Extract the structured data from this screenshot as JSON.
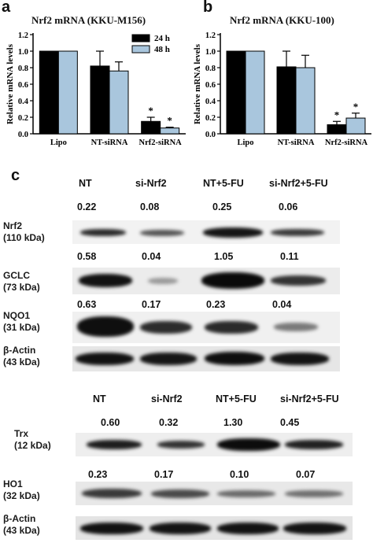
{
  "panels": {
    "a": {
      "letter": "a",
      "title": "Nrf2 mRNA  (KKU-M156)"
    },
    "b": {
      "letter": "b",
      "title": "Nrf2 mRNA  (KKU-100)"
    },
    "c": {
      "letter": "c"
    }
  },
  "chart_data": [
    {
      "type": "bar",
      "title": "Nrf2 mRNA  (KKU-M156)",
      "ylabel": "Relative mRNA levels",
      "ylim": [
        0,
        1.2
      ],
      "yticks": [
        "0.0",
        "0.2",
        "0.4",
        "0.6",
        "0.8",
        "1.0",
        "1.2"
      ],
      "categories": [
        "Lipo",
        "NT-siRNA",
        "Nrf2-siRNA"
      ],
      "series": [
        {
          "name": "24 h",
          "color": "#000000",
          "values": [
            1.0,
            0.82,
            0.15
          ],
          "errors": [
            0.0,
            0.18,
            0.05
          ]
        },
        {
          "name": "48 h",
          "color": "#a9c6dd",
          "values": [
            1.0,
            0.76,
            0.07
          ],
          "errors": [
            0.0,
            0.11,
            0.01
          ]
        }
      ],
      "significance": [
        {
          "category": "Nrf2-siRNA",
          "series": "24 h",
          "mark": "*"
        },
        {
          "category": "Nrf2-siRNA",
          "series": "48 h",
          "mark": "*"
        }
      ],
      "legend": "top-right"
    },
    {
      "type": "bar",
      "title": "Nrf2 mRNA  (KKU-100)",
      "ylabel": "Relative mRNA levels",
      "ylim": [
        0,
        1.2
      ],
      "yticks": [
        "0.0",
        "0.2",
        "0.4",
        "0.6",
        "0.8",
        "1.0",
        "1.2"
      ],
      "categories": [
        "Lipo",
        "NT-siRNA",
        "Nrf2-siRNA"
      ],
      "series": [
        {
          "name": "24 h",
          "color": "#000000",
          "values": [
            1.0,
            0.81,
            0.11
          ],
          "errors": [
            0.0,
            0.19,
            0.04
          ]
        },
        {
          "name": "48 h",
          "color": "#a9c6dd",
          "values": [
            1.0,
            0.8,
            0.19
          ],
          "errors": [
            0.0,
            0.15,
            0.06
          ]
        }
      ],
      "significance": [
        {
          "category": "Nrf2-siRNA",
          "series": "24 h",
          "mark": "*"
        },
        {
          "category": "Nrf2-siRNA",
          "series": "48 h",
          "mark": "*"
        }
      ],
      "legend": "none"
    }
  ],
  "blot1": {
    "lanes": [
      "NT",
      "si-Nrf2",
      "NT+5-FU",
      "si-Nrf2+5-FU"
    ],
    "rows": [
      {
        "name": "Nrf2",
        "kda": "(110 kDa)",
        "values": [
          "0.22",
          "0.08",
          "0.25",
          "0.06"
        ]
      },
      {
        "name": "GCLC",
        "kda": "(73 kDa)",
        "values": [
          "0.58",
          "0.04",
          "1.05",
          "0.11"
        ]
      },
      {
        "name": "NQO1",
        "kda": "(31 kDa)",
        "values": [
          "0.63",
          "0.17",
          "0.23",
          "0.04"
        ]
      },
      {
        "name": "β-Actin",
        "kda": "(43 kDa)",
        "values": []
      }
    ]
  },
  "blot2": {
    "lanes": [
      "NT",
      "si-Nrf2",
      "NT+5-FU",
      "si-Nrf2+5-FU"
    ],
    "rows": [
      {
        "name": "Trx",
        "kda": "(12 kDa)",
        "values": [
          "0.60",
          "0.32",
          "1.30",
          "0.45"
        ]
      },
      {
        "name": "HO1",
        "kda": "(32 kDa)",
        "values": [
          "0.23",
          "0.17",
          "0.10",
          "0.07"
        ]
      },
      {
        "name": "β-Actin",
        "kda": "(43 kDa)",
        "values": []
      }
    ]
  }
}
